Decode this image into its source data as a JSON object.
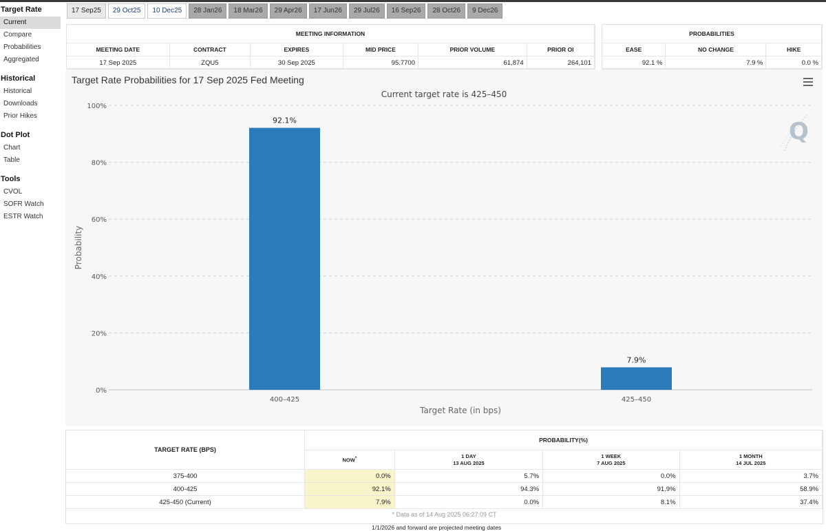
{
  "sidebar": {
    "sections": [
      {
        "title": "Target Rate",
        "items": [
          "Current",
          "Compare",
          "Probabilities",
          "Aggregated"
        ],
        "active": 0
      },
      {
        "title": "Historical",
        "items": [
          "Historical",
          "Downloads",
          "Prior Hikes"
        ]
      },
      {
        "title": "Dot Plot",
        "items": [
          "Chart",
          "Table"
        ]
      },
      {
        "title": "Tools",
        "items": [
          "CVOL",
          "SOFR Watch",
          "ESTR Watch"
        ]
      }
    ]
  },
  "tabs": [
    {
      "label": "17 Sep25",
      "style": "active"
    },
    {
      "label": "29 Oct25",
      "style": "light"
    },
    {
      "label": "10 Dec25",
      "style": "light"
    },
    {
      "label": "28 Jan26",
      "style": "dark"
    },
    {
      "label": "18 Mar26",
      "style": "dark"
    },
    {
      "label": "29 Apr26",
      "style": "dark"
    },
    {
      "label": "17 Jun26",
      "style": "dark"
    },
    {
      "label": "29 Jul26",
      "style": "dark"
    },
    {
      "label": "16 Sep26",
      "style": "dark"
    },
    {
      "label": "28 Oct26",
      "style": "dark"
    },
    {
      "label": "9 Dec26",
      "style": "dark"
    }
  ],
  "meeting_info": {
    "title": "MEETING INFORMATION",
    "headers": [
      "MEETING DATE",
      "CONTRACT",
      "EXPIRES",
      "MID PRICE",
      "PRIOR VOLUME",
      "PRIOR OI"
    ],
    "values": [
      "17 Sep 2025",
      "ZQU5",
      "30 Sep 2025",
      "95.7700",
      "61,874",
      "264,101"
    ]
  },
  "probabilities": {
    "title": "PROBABILITIES",
    "headers": [
      "EASE",
      "NO CHANGE",
      "HIKE"
    ],
    "values": [
      "92.1 %",
      "7.9 %",
      "0.0 %"
    ]
  },
  "chart": {
    "title": "Target Rate Probabilities for 17 Sep 2025 Fed Meeting",
    "logo_letter": "Q"
  },
  "chart_data": {
    "type": "bar",
    "subtitle": "Current target rate is 425–450",
    "categories": [
      "400–425",
      "425–450"
    ],
    "values": [
      92.1,
      7.9
    ],
    "data_labels": [
      "92.1%",
      "7.9%"
    ],
    "xlabel": "Target Rate (in bps)",
    "ylabel": "Probability",
    "ylim": [
      0,
      100
    ],
    "yticks": [
      0,
      20,
      40,
      60,
      80,
      100
    ],
    "ytick_labels": [
      "0%",
      "20%",
      "40%",
      "60%",
      "80%",
      "100%"
    ],
    "grid": true,
    "bar_color": "#2b7bba"
  },
  "bottom_table": {
    "left_header": "TARGET RATE (BPS)",
    "group_header": "PROBABILITY(%)",
    "now": "NOW",
    "now_mark": "*",
    "columns": [
      {
        "line1": "1 DAY",
        "line2": "13 AUG 2025"
      },
      {
        "line1": "1 WEEK",
        "line2": "7 AUG 2025"
      },
      {
        "line1": "1 MONTH",
        "line2": "14 JUL 2025"
      }
    ],
    "rows": [
      {
        "rate": "375-400",
        "now": "0.0%",
        "values": [
          "5.7%",
          "0.0%",
          "3.7%"
        ]
      },
      {
        "rate": "400-425",
        "now": "92.1%",
        "values": [
          "94.3%",
          "91.9%",
          "58.9%"
        ]
      },
      {
        "rate": "425-450 (Current)",
        "now": "7.9%",
        "values": [
          "0.0%",
          "8.1%",
          "37.4%"
        ]
      }
    ],
    "note": "* Data as of 14 Aug 2025 06:27:09 CT"
  },
  "footer": "1/1/2026 and forward are projected meeting dates"
}
